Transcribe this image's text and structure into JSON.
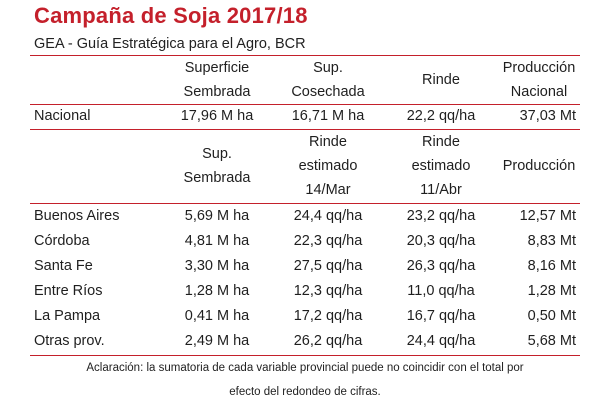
{
  "title": "Campaña de Soja 2017/18",
  "subtitle": "GEA - Guía Estratégica para el Agro, BCR",
  "national_headers": {
    "h1": [
      "Superficie",
      "Sembrada"
    ],
    "h2": [
      "Sup.",
      "Cosechada"
    ],
    "h3": [
      "Rinde"
    ],
    "h4": [
      "Producción",
      "Nacional"
    ]
  },
  "national_row": {
    "label": "Nacional",
    "sembrada": "17,96 M ha",
    "cosechada": "16,71 M ha",
    "rinde": "22,2 qq/ha",
    "produccion": "37,03 Mt"
  },
  "province_headers": {
    "h1": [
      "Sup.",
      "Sembrada"
    ],
    "h2": [
      "Rinde",
      "estimado",
      "14/Mar"
    ],
    "h3": [
      "Rinde",
      "estimado",
      "11/Abr"
    ],
    "h4": [
      "Producción"
    ]
  },
  "provinces": [
    {
      "name": "Buenos Aires",
      "sembrada": "5,69 M ha",
      "rinde_mar": "24,4 qq/ha",
      "rinde_abr": "23,2 qq/ha",
      "produccion": "12,57 Mt"
    },
    {
      "name": "Córdoba",
      "sembrada": "4,81 M ha",
      "rinde_mar": "22,3 qq/ha",
      "rinde_abr": "20,3 qq/ha",
      "produccion": "8,83 Mt"
    },
    {
      "name": "Santa Fe",
      "sembrada": "3,30 M ha",
      "rinde_mar": "27,5 qq/ha",
      "rinde_abr": "26,3 qq/ha",
      "produccion": "8,16 Mt"
    },
    {
      "name": "Entre Ríos",
      "sembrada": "1,28 M ha",
      "rinde_mar": "12,3 qq/ha",
      "rinde_abr": "11,0 qq/ha",
      "produccion": "1,28 Mt"
    },
    {
      "name": "La Pampa",
      "sembrada": "0,41 M ha",
      "rinde_mar": "17,2 qq/ha",
      "rinde_abr": "16,7 qq/ha",
      "produccion": "0,50 Mt"
    },
    {
      "name": "Otras prov.",
      "sembrada": "2,49 M ha",
      "rinde_mar": "26,2 qq/ha",
      "rinde_abr": "24,4 qq/ha",
      "produccion": "5,68 Mt"
    }
  ],
  "note_lines": [
    "Aclaración: la sumatoria de cada variable provincial puede no coincidir con el total por",
    "efecto del redondeo de cifras."
  ],
  "colors": {
    "accent": "#c4202b",
    "text": "#1f1f1f"
  }
}
